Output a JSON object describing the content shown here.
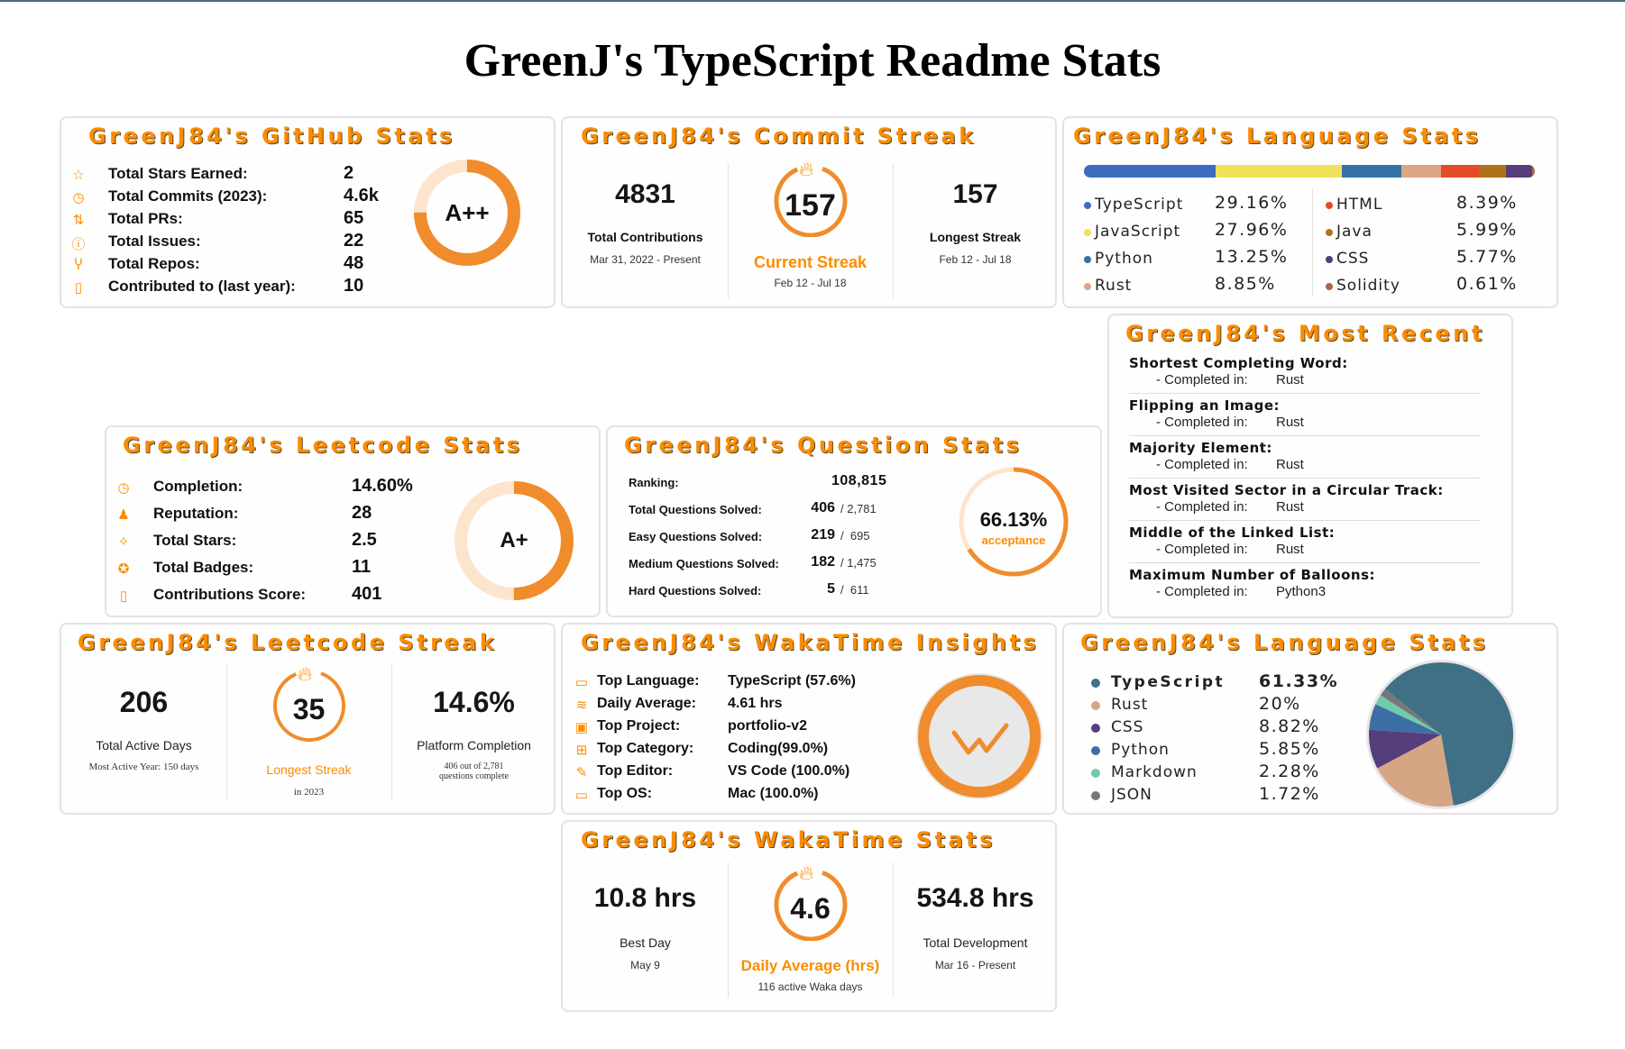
{
  "page_title": "GreenJ's TypeScript Readme Stats",
  "colors": {
    "accent": "#fb8c00",
    "border": "#e4e2e2"
  },
  "github_stats": {
    "title": "GreenJ84's GitHub Stats",
    "rows": [
      {
        "icon": "star-icon",
        "label": "Total Stars Earned:",
        "value": "2"
      },
      {
        "icon": "history-icon",
        "label": "Total Commits (2023):",
        "value": "4.6k"
      },
      {
        "icon": "pull-request-icon",
        "label": "Total PRs:",
        "value": "65"
      },
      {
        "icon": "issue-icon",
        "label": "Total Issues:",
        "value": "22"
      },
      {
        "icon": "repo-fork-icon",
        "label": "Total Repos:",
        "value": "48"
      },
      {
        "icon": "repo-icon",
        "label": "Contributed to (last year):",
        "value": "10"
      }
    ],
    "rank": "A++",
    "rank_progress": 0.75
  },
  "commit_streak": {
    "title": "GreenJ84's Commit Streak",
    "total": {
      "value": "4831",
      "label": "Total Contributions",
      "range": "Mar 31, 2022 - Present"
    },
    "current": {
      "value": "157",
      "label": "Current Streak",
      "range": "Feb 12 - Jul 18"
    },
    "longest": {
      "value": "157",
      "label": "Longest Streak",
      "range": "Feb 12 - Jul 18"
    }
  },
  "language_stats": {
    "title": "GreenJ84's Language Stats",
    "items": [
      {
        "name": "TypeScript",
        "pct": "29.16%",
        "value": 29.16,
        "color": "#3e6cc0"
      },
      {
        "name": "JavaScript",
        "pct": "27.96%",
        "value": 27.96,
        "color": "#f1e05a"
      },
      {
        "name": "Python",
        "pct": "13.25%",
        "value": 13.25,
        "color": "#3572a5"
      },
      {
        "name": "Rust",
        "pct": "8.85%",
        "value": 8.85,
        "color": "#dea584"
      },
      {
        "name": "HTML",
        "pct": "8.39%",
        "value": 8.39,
        "color": "#e34c26"
      },
      {
        "name": "Java",
        "pct": "5.99%",
        "value": 5.99,
        "color": "#b07219"
      },
      {
        "name": "CSS",
        "pct": "5.77%",
        "value": 5.77,
        "color": "#563d7c"
      },
      {
        "name": "Solidity",
        "pct": "0.61%",
        "value": 0.61,
        "color": "#aa6746"
      }
    ]
  },
  "most_recent": {
    "title": "GreenJ84's Most Recent",
    "prefix": "- Completed in:",
    "items": [
      {
        "name": "Shortest Completing Word:",
        "lang": "Rust"
      },
      {
        "name": "Flipping an Image:",
        "lang": "Rust"
      },
      {
        "name": "Majority Element:",
        "lang": "Rust"
      },
      {
        "name": "Most Visited Sector in a Circular Track:",
        "lang": "Rust"
      },
      {
        "name": "Middle of the Linked List:",
        "lang": "Rust"
      },
      {
        "name": "Maximum Number of Balloons:",
        "lang": "Python3"
      }
    ]
  },
  "leetcode_stats": {
    "title": "GreenJ84's Leetcode Stats",
    "rows": [
      {
        "icon": "history-icon",
        "label": "Completion:",
        "value": "14.60%"
      },
      {
        "icon": "reputation-icon",
        "label": "Reputation:",
        "value": "28"
      },
      {
        "icon": "stars-icon",
        "label": "Total Stars:",
        "value": "2.5"
      },
      {
        "icon": "badge-icon",
        "label": "Total Badges:",
        "value": "11"
      },
      {
        "icon": "repo-icon",
        "label": "Contributions Score:",
        "value": "401"
      }
    ],
    "rank": "A+",
    "rank_progress": 0.5
  },
  "question_stats": {
    "title": "GreenJ84's Question Stats",
    "ranking_label": "Ranking:",
    "ranking_value": "108,815",
    "rows": [
      {
        "label": "Total Questions Solved:",
        "value": "406",
        "total": "/ 2,781"
      },
      {
        "label": "Easy Questions Solved:",
        "value": "219",
        "total": "/  695"
      },
      {
        "label": "Medium Questions Solved:",
        "value": "182",
        "total": "/ 1,475"
      },
      {
        "label": "Hard Questions Solved:",
        "value": "5",
        "total": "/  611"
      }
    ],
    "acceptance_value": "66.13%",
    "acceptance_label": "acceptance",
    "acceptance_progress": 0.6613
  },
  "leetcode_streak": {
    "title": "GreenJ84's Leetcode Streak",
    "left": {
      "value": "206",
      "label": "Total Active Days",
      "sub": "Most Active Year: 150 days"
    },
    "center": {
      "value": "35",
      "label": "Longest Streak",
      "sub": "in 2023"
    },
    "right": {
      "value": "14.6%",
      "label": "Platform Completion",
      "sub1": "406 out of 2,781",
      "sub2": "questions complete"
    }
  },
  "wakatime_insights": {
    "title": "GreenJ84's WakaTime Insights",
    "rows": [
      {
        "icon": "monitor-icon",
        "label": "Top Language:",
        "value": "TypeScript (57.6%)"
      },
      {
        "icon": "layers-icon",
        "label": "Daily Average:",
        "value": "4.61 hrs"
      },
      {
        "icon": "project-icon",
        "label": "Top Project:",
        "value": "portfolio-v2"
      },
      {
        "icon": "grid-icon",
        "label": "Top Category:",
        "value": "Coding(99.0%)"
      },
      {
        "icon": "edit-icon",
        "label": "Top Editor:",
        "value": "VS Code (100.0%)"
      },
      {
        "icon": "desktop-icon",
        "label": "Top OS:",
        "value": "Mac (100.0%)"
      }
    ],
    "logo": "wakatime-logo"
  },
  "language_pie": {
    "title": "GreenJ84's Language Stats",
    "items": [
      {
        "name": "TypeScript",
        "pct": "61.33%",
        "color": "#3f7085"
      },
      {
        "name": "Rust",
        "pct": "20%",
        "color": "#d6a584"
      },
      {
        "name": "CSS",
        "pct": "8.82%",
        "color": "#563d7c"
      },
      {
        "name": "Python",
        "pct": "5.85%",
        "color": "#3d6ea6"
      },
      {
        "name": "Markdown",
        "pct": "2.28%",
        "color": "#70ccaa"
      },
      {
        "name": "JSON",
        "pct": "1.72%",
        "color": "#777777"
      }
    ],
    "chart_data": {
      "type": "pie",
      "categories": [
        "TypeScript",
        "Rust",
        "CSS",
        "Python",
        "Markdown",
        "JSON"
      ],
      "values": [
        61.33,
        20,
        8.82,
        5.85,
        2.28,
        1.72
      ]
    }
  },
  "wakatime_stats": {
    "title": "GreenJ84's WakaTime Stats",
    "left": {
      "value": "10.8 hrs",
      "label": "Best Day",
      "sub": "May 9"
    },
    "center": {
      "value": "4.6",
      "label": "Daily Average (hrs)",
      "sub": "116 active Waka days"
    },
    "right": {
      "value": "534.8 hrs",
      "label": "Total Development",
      "sub": "Mar 16 - Present"
    }
  }
}
